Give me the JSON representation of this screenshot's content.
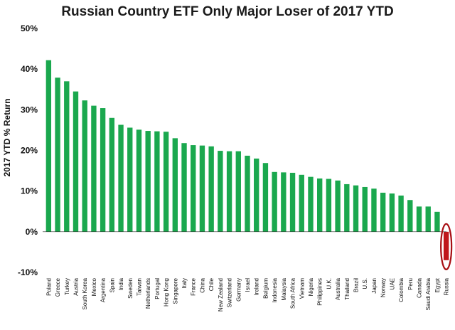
{
  "chart_data": {
    "type": "bar",
    "title": "Russian Country ETF Only Major Loser of 2017 YTD",
    "xlabel": "",
    "ylabel": "2017 YTD % Return",
    "ylim": [
      -10,
      50
    ],
    "ytick_values": [
      -10,
      0,
      10,
      20,
      30,
      40,
      50
    ],
    "ytick_labels": [
      "-10%",
      "0%",
      "10%",
      "20%",
      "30%",
      "40%",
      "50%"
    ],
    "grid": false,
    "legend": "none",
    "colors": {
      "bar": "#1aa84e",
      "highlight": "#c0171c",
      "highlight_ring": "#a80f14"
    },
    "highlight_category": "Russia",
    "categories": [
      "Poland",
      "Greece",
      "Turkey",
      "Austria",
      "South Korea",
      "Mexico",
      "Argentina",
      "Spain",
      "India",
      "Sweden",
      "Taiwan",
      "Netherlands",
      "Portugal",
      "Hong Kong",
      "Singapore",
      "Italy",
      "France",
      "China",
      "Chile",
      "New Zealand",
      "Switzerland",
      "Germany",
      "Israel",
      "Ireland",
      "Belgium",
      "Indonesia",
      "Malaysia",
      "South Africa",
      "Vietnam",
      "Nigeria",
      "Philippines",
      "U.K.",
      "Australia",
      "Thailand",
      "Brazil",
      "U.S.",
      "Japan",
      "Norway",
      "UAE",
      "Colombia",
      "Peru",
      "Canada",
      "Saudi Arabia",
      "Egypt",
      "Russia"
    ],
    "values": [
      42.2,
      37.9,
      37.0,
      34.5,
      32.3,
      31.0,
      30.4,
      28.0,
      26.3,
      25.6,
      25.1,
      24.8,
      24.7,
      24.6,
      23.0,
      21.8,
      21.3,
      21.2,
      21.0,
      19.9,
      19.8,
      19.8,
      18.7,
      18.0,
      16.9,
      14.7,
      14.6,
      14.5,
      14.0,
      13.5,
      13.1,
      13.0,
      12.6,
      11.7,
      11.4,
      11.0,
      10.6,
      9.6,
      9.4,
      8.9,
      7.8,
      6.2,
      6.2,
      4.9,
      -7.0
    ]
  }
}
